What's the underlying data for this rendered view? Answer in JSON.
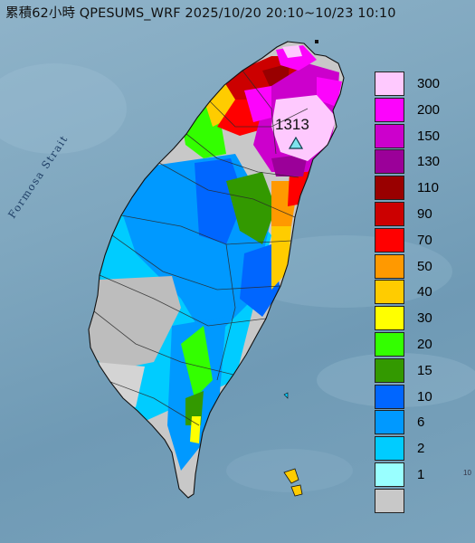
{
  "header": {
    "title": "累積62小時 QPESUMS_WRF 2025/10/20 20:10~10/23 10:10"
  },
  "map": {
    "sea_label": "Formosa Strait",
    "max_value_label": "1313",
    "max_marker_icon": "triangle-icon",
    "corner_mark": "10"
  },
  "legend": {
    "items": [
      {
        "label": "300",
        "color": "#fec9fe"
      },
      {
        "label": "200",
        "color": "#fc04fc"
      },
      {
        "label": "150",
        "color": "#cc00cc"
      },
      {
        "label": "130",
        "color": "#9b0099"
      },
      {
        "label": "110",
        "color": "#990000"
      },
      {
        "label": "90",
        "color": "#cc0000"
      },
      {
        "label": "70",
        "color": "#ff0000"
      },
      {
        "label": "50",
        "color": "#ff9900"
      },
      {
        "label": "40",
        "color": "#ffcc00"
      },
      {
        "label": "30",
        "color": "#ffff00"
      },
      {
        "label": "20",
        "color": "#33ff00"
      },
      {
        "label": "15",
        "color": "#339900"
      },
      {
        "label": "10",
        "color": "#0066ff"
      },
      {
        "label": "6",
        "color": "#0099ff"
      },
      {
        "label": "2",
        "color": "#00ccff"
      },
      {
        "label": "1",
        "color": "#99ffff"
      },
      {
        "label": "",
        "color": "#c8c8c8"
      }
    ]
  }
}
